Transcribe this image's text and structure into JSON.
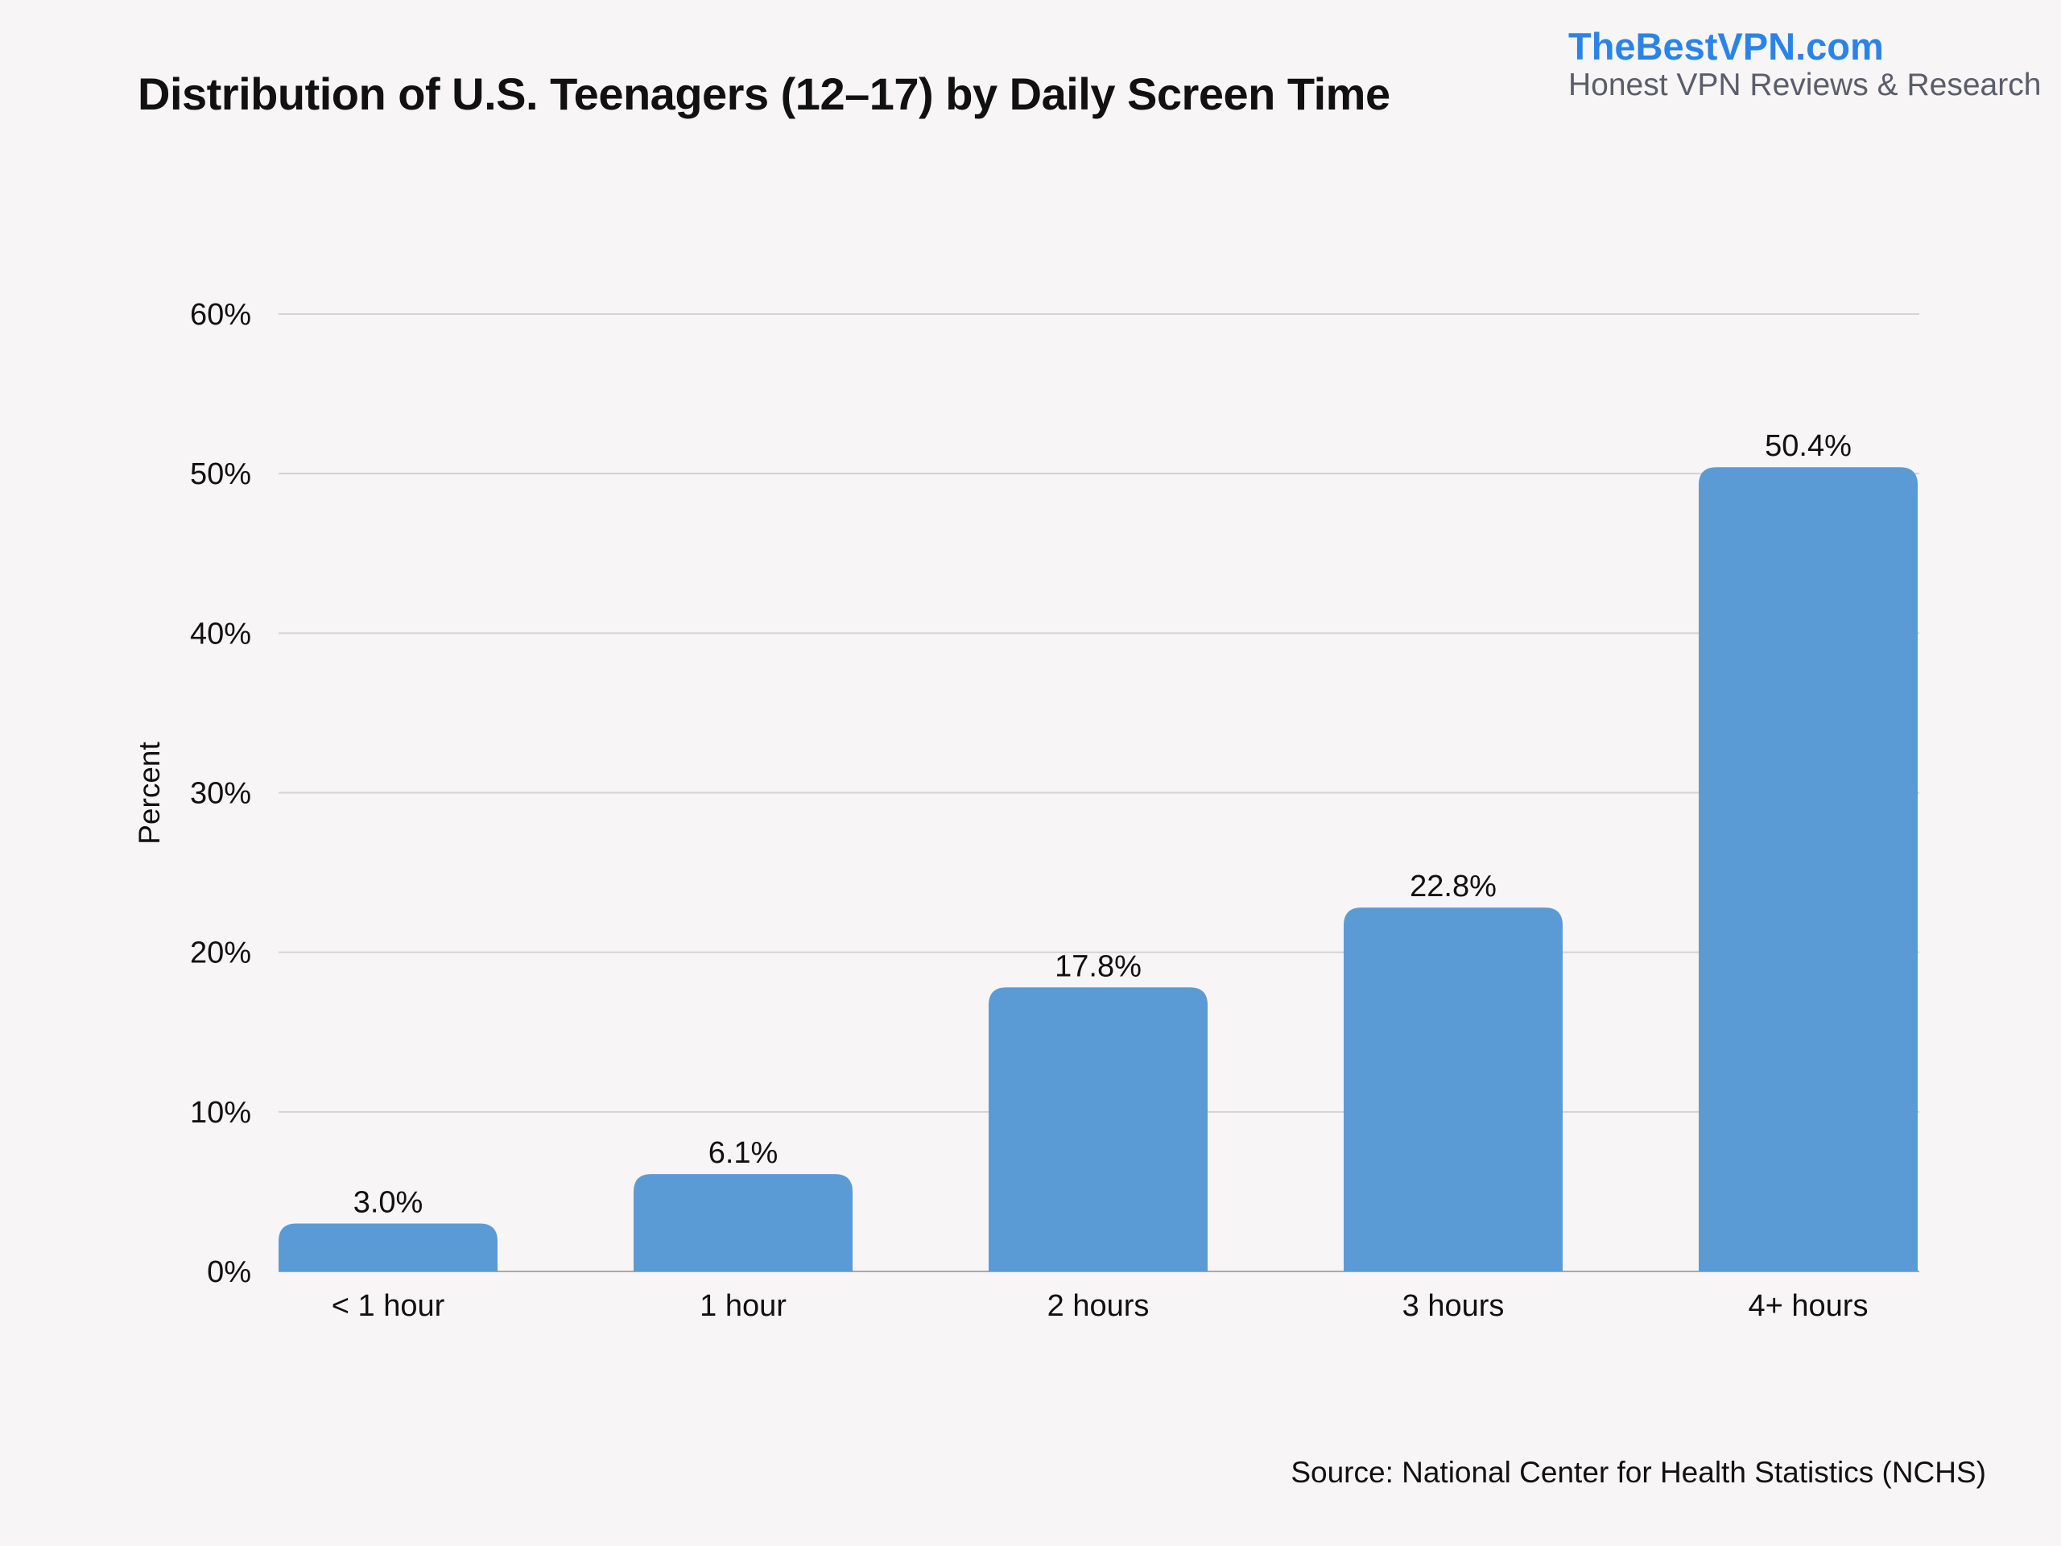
{
  "header": {
    "title": "Distribution of U.S. Teenagers (12–17) by Daily Screen Time",
    "brand": "TheBestVPN.com",
    "tagline": "Honest VPN Reviews & Research"
  },
  "footer": {
    "source": "Source: National Center for Health Statistics (NCHS)"
  },
  "colors": {
    "bar": "#5b9bd5",
    "grid": "#d4d2d3",
    "brand": "#2a84e8"
  },
  "chart_data": {
    "type": "bar",
    "title": "Distribution of U.S. Teenagers (12–17) by Daily Screen Time",
    "xlabel": "",
    "ylabel": "Percent",
    "categories": [
      "< 1 hour",
      "1 hour",
      "2 hours",
      "3 hours",
      "4+ hours"
    ],
    "values": [
      3.0,
      6.1,
      17.8,
      22.8,
      50.4
    ],
    "data_labels": [
      "3.0%",
      "6.1%",
      "17.8%",
      "22.8%",
      "50.4%"
    ],
    "ylim": [
      0,
      60
    ],
    "yticks": [
      0,
      10,
      20,
      30,
      40,
      50,
      60
    ],
    "ytick_labels": [
      "0%",
      "10%",
      "20%",
      "30%",
      "40%",
      "50%",
      "60%"
    ],
    "grid": true,
    "legend": "none"
  }
}
